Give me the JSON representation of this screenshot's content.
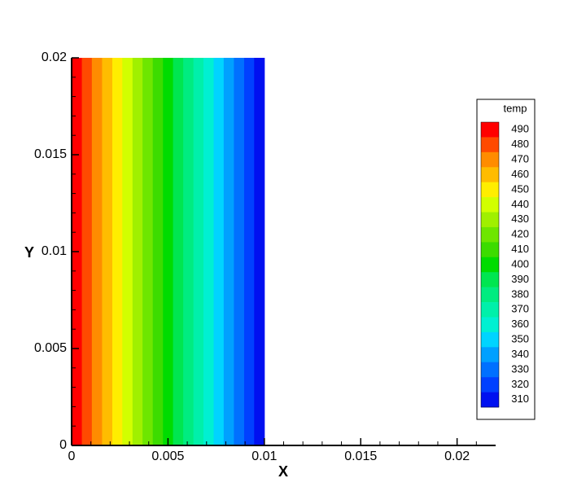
{
  "chart_data": {
    "type": "contour",
    "xlabel": "X",
    "ylabel": "Y",
    "xlim": [
      0,
      0.022
    ],
    "ylim": [
      0,
      0.02
    ],
    "xticks": [
      0,
      0.005,
      0.01,
      0.015,
      0.02
    ],
    "yticks": [
      0,
      0.005,
      0.01,
      0.015,
      0.02
    ],
    "domain_y": [
      0,
      0.02
    ],
    "band_edges": [
      0,
      0.00053,
      0.00105,
      0.00158,
      0.00211,
      0.00263,
      0.00316,
      0.00368,
      0.00421,
      0.00474,
      0.00526,
      0.00579,
      0.00632,
      0.00684,
      0.00737,
      0.00789,
      0.00842,
      0.00895,
      0.00947,
      0.01
    ],
    "legend_title": "temp",
    "levels": [
      490,
      480,
      470,
      460,
      450,
      440,
      430,
      420,
      410,
      400,
      390,
      380,
      370,
      360,
      350,
      340,
      330,
      320,
      310
    ],
    "colors": [
      "#ff0000",
      "#ff4a00",
      "#ff8c00",
      "#ffbc00",
      "#ffee00",
      "#d2ff00",
      "#a0f000",
      "#6ee600",
      "#3cdc00",
      "#00dc00",
      "#00e650",
      "#00ec80",
      "#00f0aa",
      "#00f0d2",
      "#00d4ff",
      "#00a0ff",
      "#0070ff",
      "#0040ff",
      "#0010f0"
    ]
  }
}
